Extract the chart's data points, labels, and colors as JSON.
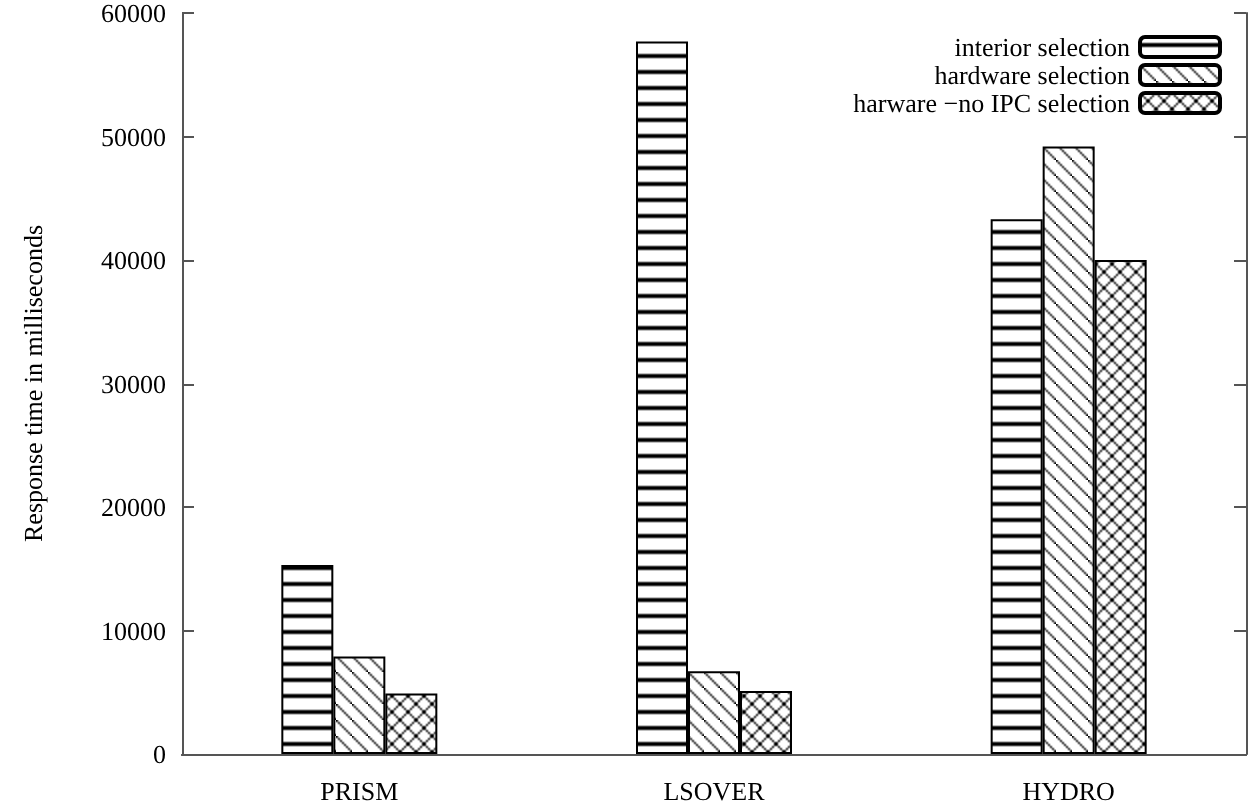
{
  "chart_data": {
    "type": "bar",
    "ylabel": "Response time in milliseconds",
    "categories": [
      "PRISM",
      "LSOVER",
      "HYDRO"
    ],
    "series": [
      {
        "name": "interior selection",
        "color": "#000000",
        "values": [
          15300,
          57700,
          43300
        ]
      },
      {
        "name": "hardware selection",
        "color": "#000000",
        "values": [
          7900,
          6700,
          49200
        ]
      },
      {
        "name": "harware −no IPC selection",
        "color": "#000000",
        "values": [
          4900,
          5100,
          40000
        ]
      }
    ],
    "ylim": [
      0,
      60000
    ],
    "yticks": [
      0,
      10000,
      20000,
      30000,
      40000,
      50000,
      60000
    ],
    "grid": false,
    "legend": "top right"
  }
}
